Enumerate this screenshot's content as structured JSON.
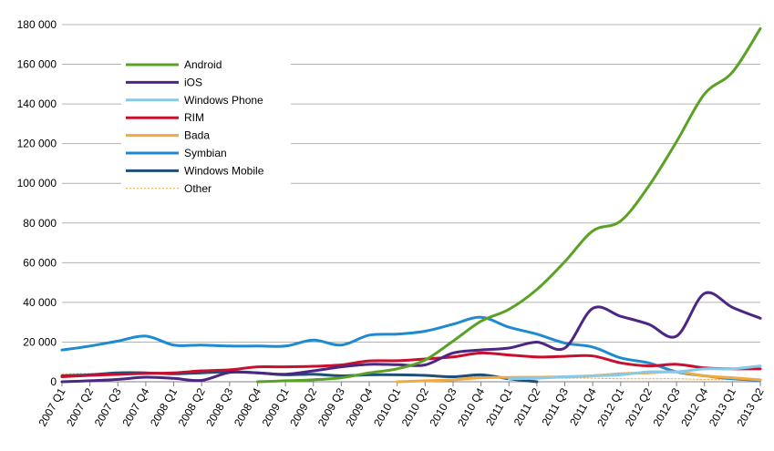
{
  "chart_data": {
    "type": "line",
    "title": "",
    "xlabel": "",
    "ylabel": "",
    "ylim": [
      0,
      180000
    ],
    "yticks": [
      "0",
      "20 000",
      "40 000",
      "60 000",
      "80 000",
      "100 000",
      "120 000",
      "140 000",
      "160 000",
      "180 000"
    ],
    "grid": "horizontal",
    "legend_position": "top-left",
    "categories": [
      "2007 Q1",
      "2007 Q2",
      "2007 Q3",
      "2007 Q4",
      "2008 Q1",
      "2008 Q2",
      "2008 Q3",
      "2008 Q4",
      "2009 Q1",
      "2009 Q2",
      "2009 Q3",
      "2009 Q4",
      "2010 Q1",
      "2010 Q2",
      "2010 Q3",
      "2010 Q4",
      "2011 Q1",
      "2011 Q2",
      "2011 Q3",
      "2011 Q4",
      "2012 Q1",
      "2012 Q2",
      "2012 Q3",
      "2012 Q4",
      "2013 Q1",
      "2013 Q2"
    ],
    "series": [
      {
        "name": "Android",
        "color": "#5ba125",
        "dashed": false,
        "values": [
          null,
          null,
          null,
          null,
          null,
          null,
          null,
          0,
          500,
          1000,
          2000,
          4500,
          6500,
          11000,
          20500,
          30500,
          36500,
          46500,
          60500,
          76000,
          81000,
          98500,
          121000,
          145000,
          156000,
          178000
        ]
      },
      {
        "name": "iOS",
        "color": "#4b2683",
        "dashed": false,
        "values": [
          0,
          500,
          1200,
          2300,
          1700,
          700,
          4700,
          4500,
          3800,
          5500,
          7500,
          8800,
          8600,
          8500,
          14500,
          16000,
          17000,
          20000,
          17000,
          37000,
          33000,
          29000,
          23000,
          44500,
          37500,
          32000
        ]
      },
      {
        "name": "Windows Phone",
        "color": "#85c9ec",
        "dashed": false,
        "values": [
          null,
          null,
          null,
          null,
          null,
          null,
          null,
          null,
          null,
          null,
          null,
          null,
          null,
          null,
          null,
          null,
          1500,
          1800,
          2500,
          3000,
          3500,
          5000,
          5000,
          6500,
          6500,
          8000
        ]
      },
      {
        "name": "RIM",
        "color": "#c8102e",
        "dashed": false,
        "values": [
          2500,
          3200,
          3700,
          4200,
          4500,
          5500,
          6000,
          7500,
          7500,
          7800,
          8500,
          10500,
          10600,
          11500,
          12500,
          14500,
          13500,
          12500,
          12800,
          13000,
          9500,
          8000,
          8800,
          7000,
          6500,
          6500
        ]
      },
      {
        "name": "Bada",
        "color": "#f3a93c",
        "dashed": false,
        "values": [
          null,
          null,
          null,
          null,
          null,
          null,
          null,
          null,
          null,
          null,
          null,
          null,
          0,
          500,
          1000,
          2000,
          2200,
          2300,
          2500,
          3000,
          4000,
          4500,
          5000,
          3000,
          2000,
          1000
        ]
      },
      {
        "name": "Symbian",
        "color": "#1e8ad0",
        "dashed": false,
        "values": [
          16000,
          18000,
          20500,
          23000,
          18500,
          18500,
          18000,
          18000,
          18000,
          21000,
          18500,
          23500,
          24000,
          25500,
          29000,
          32500,
          27500,
          24000,
          19500,
          17500,
          12000,
          9500,
          5000,
          3000,
          1500,
          800
        ]
      },
      {
        "name": "Windows Mobile",
        "color": "#1f4e79",
        "dashed": false,
        "values": [
          3000,
          3500,
          4500,
          4500,
          4000,
          4500,
          5000,
          4500,
          3500,
          3800,
          3000,
          3500,
          3500,
          3200,
          2500,
          3500,
          1500,
          0,
          null,
          null,
          null,
          null,
          null,
          null,
          null,
          null
        ]
      },
      {
        "name": "Other",
        "color": "#f3a93c",
        "dashed": true,
        "values": [
          4000,
          4200,
          4500,
          4800,
          4500,
          4500,
          4500,
          4500,
          4000,
          4000,
          3500,
          3500,
          3500,
          3000,
          2500,
          2500,
          2000,
          1800,
          1800,
          1800,
          1500,
          1500,
          1500,
          1200,
          1200,
          1000
        ]
      }
    ]
  }
}
